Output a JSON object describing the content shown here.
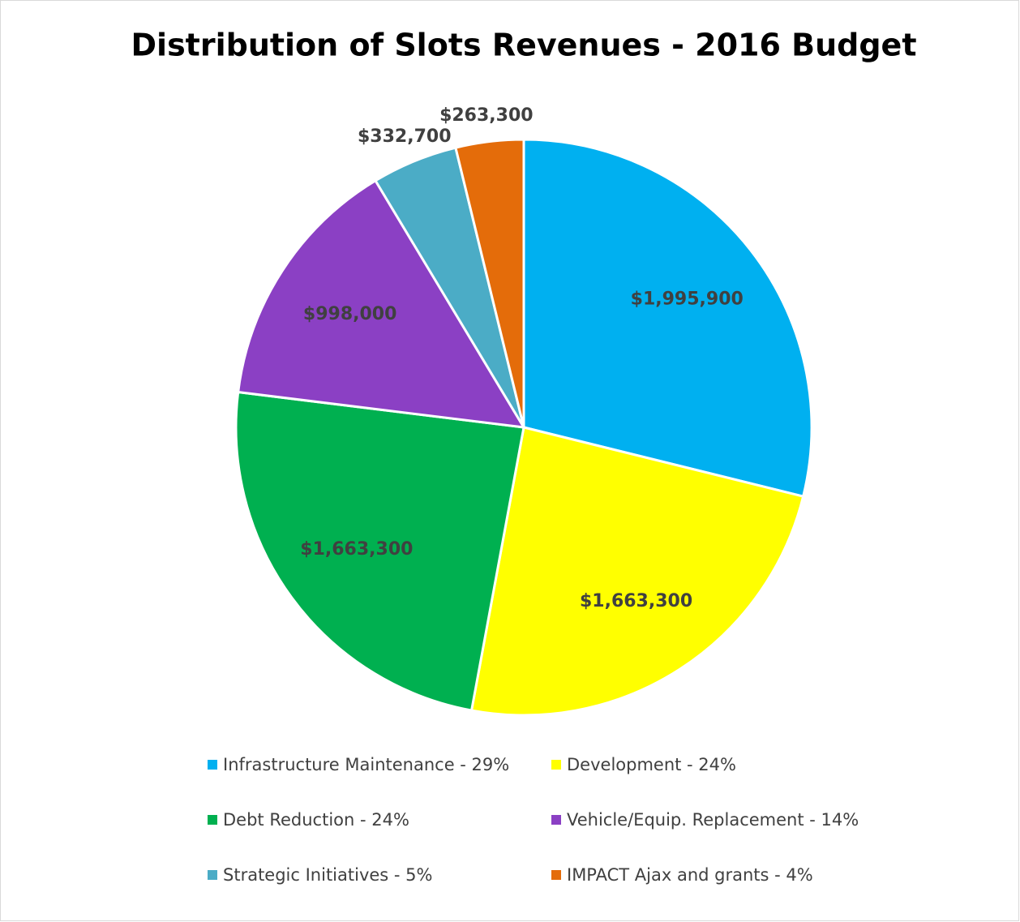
{
  "chart_data": {
    "type": "pie",
    "title": "Distribution of Slots Revenues - 2016 Budget",
    "categories": [
      "Infrastructure Maintenance - 29%",
      "Development - 24%",
      "Debt Reduction - 24%",
      "Vehicle/Equip. Replacement - 14%",
      "Strategic Initiatives - 5%",
      "IMPACT Ajax and grants - 4%"
    ],
    "values": [
      1995900,
      1663300,
      1663300,
      998000,
      332700,
      263300
    ],
    "value_labels": [
      "$1,995,900",
      "$1,663,300",
      "$1,663,300",
      "$998,000",
      "$332,700",
      "$263,300"
    ],
    "colors": [
      "#00b0f0",
      "#ffff00",
      "#00b050",
      "#8b40c4",
      "#4bacc6",
      "#e46c0a"
    ],
    "legend": "bottom"
  }
}
